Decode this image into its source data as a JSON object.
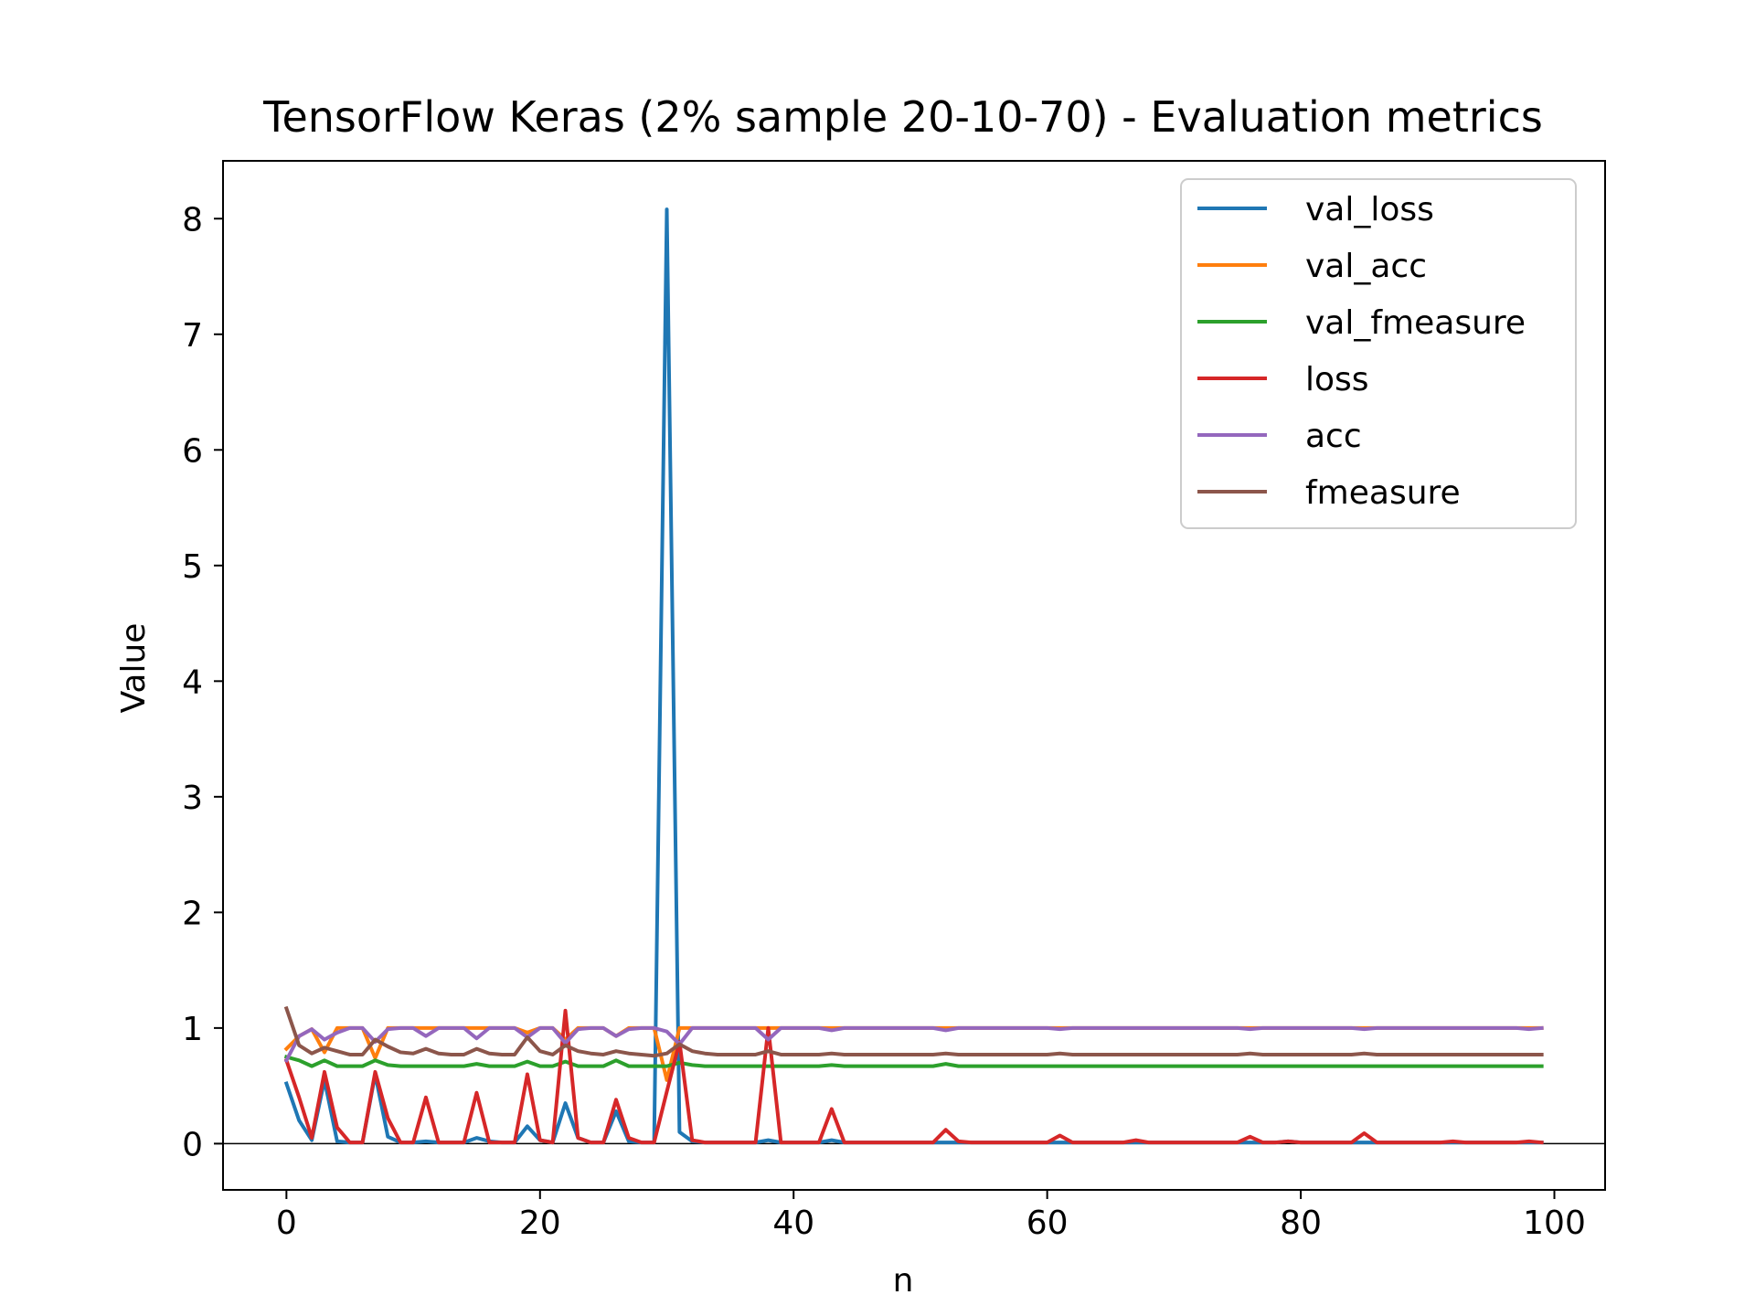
{
  "chart_data": {
    "type": "line",
    "title": "TensorFlow Keras (2% sample 20-10-70) - Evaluation metrics",
    "xlabel": "n",
    "ylabel": "Value",
    "xlim": [
      -5,
      104
    ],
    "ylim": [
      -0.4,
      8.5
    ],
    "xticks": [
      0,
      20,
      40,
      60,
      80,
      100
    ],
    "yticks": [
      0,
      1,
      2,
      3,
      4,
      5,
      6,
      7,
      8
    ],
    "xtick_labels": [
      "0",
      "20",
      "40",
      "60",
      "80",
      "100"
    ],
    "ytick_labels": [
      "0",
      "1",
      "2",
      "3",
      "4",
      "5",
      "6",
      "7",
      "8"
    ],
    "grid": false,
    "zero_line": true,
    "legend_position": "top-right",
    "x": [
      0,
      1,
      2,
      3,
      4,
      5,
      6,
      7,
      8,
      9,
      10,
      11,
      12,
      13,
      14,
      15,
      16,
      17,
      18,
      19,
      20,
      21,
      22,
      23,
      24,
      25,
      26,
      27,
      28,
      29,
      30,
      31,
      32,
      33,
      34,
      35,
      36,
      37,
      38,
      39,
      40,
      41,
      42,
      43,
      44,
      45,
      46,
      47,
      48,
      49,
      50,
      51,
      52,
      53,
      54,
      55,
      56,
      57,
      58,
      59,
      60,
      61,
      62,
      63,
      64,
      65,
      66,
      67,
      68,
      69,
      70,
      71,
      72,
      73,
      74,
      75,
      76,
      77,
      78,
      79,
      80,
      81,
      82,
      83,
      84,
      85,
      86,
      87,
      88,
      89,
      90,
      91,
      92,
      93,
      94,
      95,
      96,
      97,
      98,
      99
    ],
    "series": [
      {
        "name": "val_loss",
        "color": "#1f77b4",
        "values": [
          0.52,
          0.2,
          0.03,
          0.55,
          0.02,
          0.01,
          0.01,
          0.6,
          0.06,
          0.01,
          0.01,
          0.02,
          0.01,
          0.01,
          0.01,
          0.05,
          0.02,
          0.01,
          0.01,
          0.15,
          0.03,
          0.01,
          0.35,
          0.05,
          0.01,
          0.01,
          0.28,
          0.02,
          0.01,
          0.01,
          8.08,
          0.1,
          0.02,
          0.01,
          0.01,
          0.01,
          0.01,
          0.01,
          0.03,
          0.01,
          0.01,
          0.01,
          0.01,
          0.03,
          0.01,
          0.01,
          0.01,
          0.01,
          0.01,
          0.01,
          0.01,
          0.01,
          0.01,
          0.01,
          0.01,
          0.01,
          0.01,
          0.01,
          0.01,
          0.01,
          0.01,
          0.01,
          0.01,
          0.01,
          0.01,
          0.01,
          0.01,
          0.01,
          0.01,
          0.01,
          0.01,
          0.01,
          0.01,
          0.01,
          0.01,
          0.01,
          0.01,
          0.01,
          0.01,
          0.02,
          0.01,
          0.01,
          0.01,
          0.01,
          0.01,
          0.01,
          0.01,
          0.01,
          0.01,
          0.01,
          0.01,
          0.01,
          0.01,
          0.01,
          0.01,
          0.01,
          0.01,
          0.01,
          0.01,
          0.01
        ]
      },
      {
        "name": "val_acc",
        "color": "#ff7f0e",
        "values": [
          0.82,
          0.93,
          0.99,
          0.79,
          1.0,
          1.0,
          1.0,
          0.74,
          1.0,
          1.0,
          1.0,
          1.0,
          1.0,
          1.0,
          1.0,
          1.0,
          1.0,
          1.0,
          1.0,
          0.96,
          1.0,
          1.0,
          0.9,
          1.0,
          1.0,
          1.0,
          0.93,
          1.0,
          1.0,
          1.0,
          0.55,
          1.0,
          1.0,
          1.0,
          1.0,
          1.0,
          1.0,
          1.0,
          1.0,
          1.0,
          1.0,
          1.0,
          1.0,
          1.0,
          1.0,
          1.0,
          1.0,
          1.0,
          1.0,
          1.0,
          1.0,
          1.0,
          1.0,
          1.0,
          1.0,
          1.0,
          1.0,
          1.0,
          1.0,
          1.0,
          1.0,
          1.0,
          1.0,
          1.0,
          1.0,
          1.0,
          1.0,
          1.0,
          1.0,
          1.0,
          1.0,
          1.0,
          1.0,
          1.0,
          1.0,
          1.0,
          1.0,
          1.0,
          1.0,
          1.0,
          1.0,
          1.0,
          1.0,
          1.0,
          1.0,
          1.0,
          1.0,
          1.0,
          1.0,
          1.0,
          1.0,
          1.0,
          1.0,
          1.0,
          1.0,
          1.0,
          1.0,
          1.0,
          1.0,
          1.0
        ]
      },
      {
        "name": "val_fmeasure",
        "color": "#2ca02c",
        "values": [
          0.75,
          0.72,
          0.67,
          0.72,
          0.67,
          0.67,
          0.67,
          0.72,
          0.68,
          0.67,
          0.67,
          0.67,
          0.67,
          0.67,
          0.67,
          0.69,
          0.67,
          0.67,
          0.67,
          0.71,
          0.67,
          0.67,
          0.71,
          0.67,
          0.67,
          0.67,
          0.72,
          0.67,
          0.67,
          0.67,
          0.67,
          0.7,
          0.68,
          0.67,
          0.67,
          0.67,
          0.67,
          0.67,
          0.67,
          0.67,
          0.67,
          0.67,
          0.67,
          0.68,
          0.67,
          0.67,
          0.67,
          0.67,
          0.67,
          0.67,
          0.67,
          0.67,
          0.69,
          0.67,
          0.67,
          0.67,
          0.67,
          0.67,
          0.67,
          0.67,
          0.67,
          0.67,
          0.67,
          0.67,
          0.67,
          0.67,
          0.67,
          0.67,
          0.67,
          0.67,
          0.67,
          0.67,
          0.67,
          0.67,
          0.67,
          0.67,
          0.67,
          0.67,
          0.67,
          0.67,
          0.67,
          0.67,
          0.67,
          0.67,
          0.67,
          0.67,
          0.67,
          0.67,
          0.67,
          0.67,
          0.67,
          0.67,
          0.67,
          0.67,
          0.67,
          0.67,
          0.67,
          0.67,
          0.67,
          0.67
        ]
      },
      {
        "name": "loss",
        "color": "#d62728",
        "values": [
          0.72,
          0.4,
          0.05,
          0.62,
          0.14,
          0.01,
          0.01,
          0.62,
          0.22,
          0.01,
          0.01,
          0.4,
          0.01,
          0.01,
          0.01,
          0.44,
          0.01,
          0.01,
          0.01,
          0.6,
          0.03,
          0.01,
          1.15,
          0.05,
          0.01,
          0.01,
          0.38,
          0.05,
          0.01,
          0.01,
          0.45,
          0.88,
          0.03,
          0.01,
          0.01,
          0.01,
          0.01,
          0.01,
          1.0,
          0.01,
          0.01,
          0.01,
          0.01,
          0.3,
          0.01,
          0.01,
          0.01,
          0.01,
          0.01,
          0.01,
          0.01,
          0.01,
          0.12,
          0.02,
          0.01,
          0.01,
          0.01,
          0.01,
          0.01,
          0.01,
          0.01,
          0.07,
          0.01,
          0.01,
          0.01,
          0.01,
          0.01,
          0.03,
          0.01,
          0.01,
          0.01,
          0.01,
          0.01,
          0.01,
          0.01,
          0.01,
          0.06,
          0.01,
          0.01,
          0.02,
          0.01,
          0.01,
          0.01,
          0.01,
          0.01,
          0.09,
          0.01,
          0.01,
          0.01,
          0.01,
          0.01,
          0.01,
          0.02,
          0.01,
          0.01,
          0.01,
          0.01,
          0.01,
          0.02,
          0.01
        ]
      },
      {
        "name": "acc",
        "color": "#9467bd",
        "values": [
          0.72,
          0.93,
          0.99,
          0.9,
          0.96,
          1.0,
          1.0,
          0.88,
          0.99,
          1.0,
          1.0,
          0.93,
          1.0,
          1.0,
          1.0,
          0.91,
          1.0,
          1.0,
          1.0,
          0.92,
          1.0,
          1.0,
          0.87,
          0.99,
          1.0,
          1.0,
          0.93,
          0.99,
          1.0,
          1.0,
          0.97,
          0.86,
          1.0,
          1.0,
          1.0,
          1.0,
          1.0,
          1.0,
          0.9,
          1.0,
          1.0,
          1.0,
          1.0,
          0.98,
          1.0,
          1.0,
          1.0,
          1.0,
          1.0,
          1.0,
          1.0,
          1.0,
          0.98,
          1.0,
          1.0,
          1.0,
          1.0,
          1.0,
          1.0,
          1.0,
          1.0,
          0.99,
          1.0,
          1.0,
          1.0,
          1.0,
          1.0,
          1.0,
          1.0,
          1.0,
          1.0,
          1.0,
          1.0,
          1.0,
          1.0,
          1.0,
          0.99,
          1.0,
          1.0,
          1.0,
          1.0,
          1.0,
          1.0,
          1.0,
          1.0,
          0.99,
          1.0,
          1.0,
          1.0,
          1.0,
          1.0,
          1.0,
          1.0,
          1.0,
          1.0,
          1.0,
          1.0,
          1.0,
          0.99,
          1.0
        ]
      },
      {
        "name": "fmeasure",
        "color": "#8c564b",
        "values": [
          1.17,
          0.85,
          0.78,
          0.83,
          0.8,
          0.77,
          0.77,
          0.9,
          0.84,
          0.79,
          0.78,
          0.82,
          0.78,
          0.77,
          0.77,
          0.82,
          0.78,
          0.77,
          0.77,
          0.92,
          0.8,
          0.77,
          0.85,
          0.8,
          0.78,
          0.77,
          0.8,
          0.78,
          0.77,
          0.76,
          0.78,
          0.86,
          0.8,
          0.78,
          0.77,
          0.77,
          0.77,
          0.77,
          0.8,
          0.77,
          0.77,
          0.77,
          0.77,
          0.78,
          0.77,
          0.77,
          0.77,
          0.77,
          0.77,
          0.77,
          0.77,
          0.77,
          0.78,
          0.77,
          0.77,
          0.77,
          0.77,
          0.77,
          0.77,
          0.77,
          0.77,
          0.78,
          0.77,
          0.77,
          0.77,
          0.77,
          0.77,
          0.77,
          0.77,
          0.77,
          0.77,
          0.77,
          0.77,
          0.77,
          0.77,
          0.77,
          0.78,
          0.77,
          0.77,
          0.77,
          0.77,
          0.77,
          0.77,
          0.77,
          0.77,
          0.78,
          0.77,
          0.77,
          0.77,
          0.77,
          0.77,
          0.77,
          0.77,
          0.77,
          0.77,
          0.77,
          0.77,
          0.77,
          0.77,
          0.77
        ]
      }
    ]
  }
}
